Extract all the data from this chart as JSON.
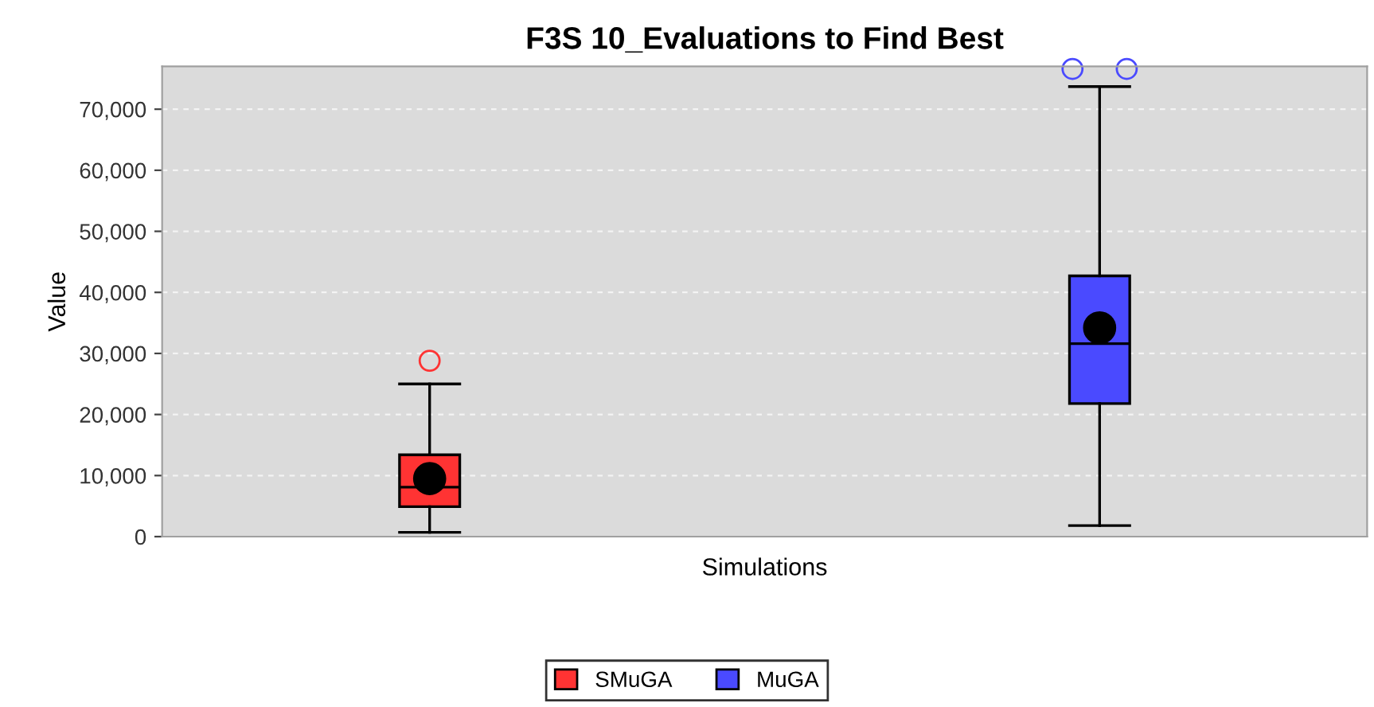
{
  "chart_data": {
    "type": "box",
    "title": "F3S 10_Evaluations to Find Best",
    "xlabel": "Simulations",
    "ylabel": "Value",
    "categories": [
      null
    ],
    "series": [
      {
        "name": "SMuGA",
        "color": "#ff3333",
        "boxes": [
          {
            "low": 700,
            "q1": 4900,
            "median": 8100,
            "q3": 13400,
            "high": 25000,
            "mean": 9500,
            "outliers": [
              28800
            ]
          }
        ]
      },
      {
        "name": "MuGA",
        "color": "#4a4aff",
        "boxes": [
          {
            "low": 1800,
            "q1": 21800,
            "median": 31600,
            "q3": 42700,
            "high": 73700,
            "mean": 34200,
            "outliers": [
              76600,
              76600
            ]
          }
        ]
      }
    ],
    "ylim": [
      0,
      77000
    ],
    "yticks": [
      {
        "value": 0,
        "label": "0"
      },
      {
        "value": 10000,
        "label": "10,000"
      },
      {
        "value": 20000,
        "label": "20,000"
      },
      {
        "value": 30000,
        "label": "30,000"
      },
      {
        "value": 40000,
        "label": "40,000"
      },
      {
        "value": 50000,
        "label": "50,000"
      },
      {
        "value": 60000,
        "label": "60,000"
      },
      {
        "value": 70000,
        "label": "70,000"
      }
    ],
    "grid": "y",
    "legend": "bottom"
  }
}
